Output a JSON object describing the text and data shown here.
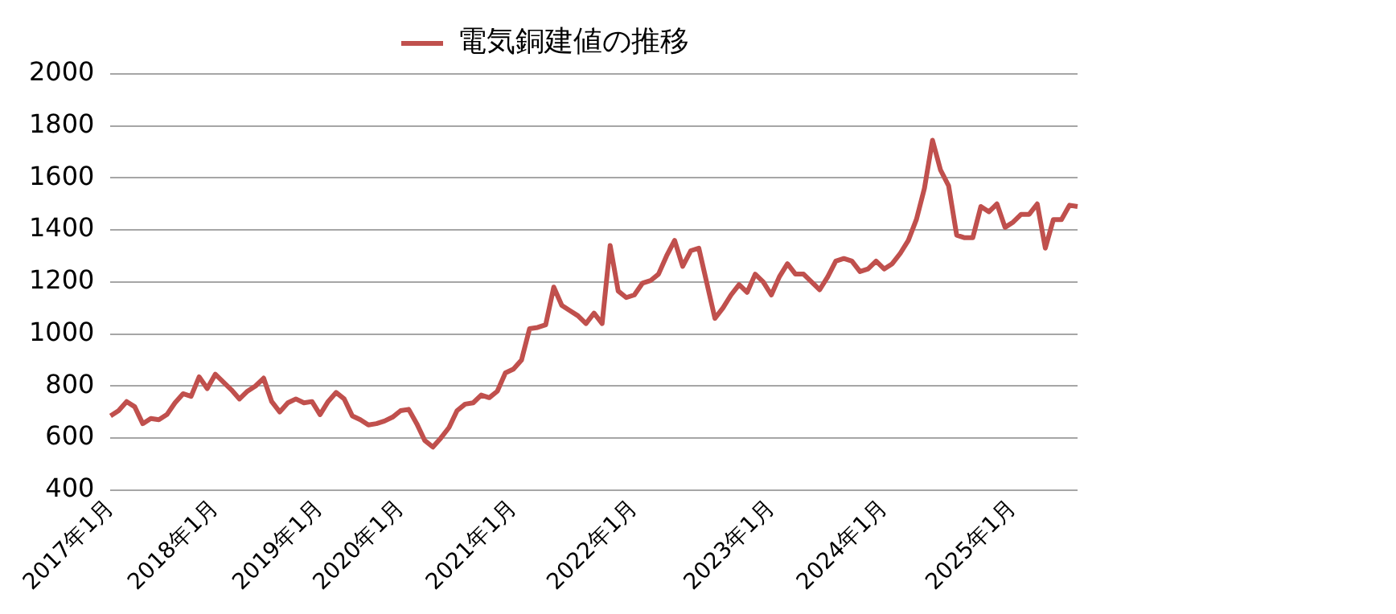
{
  "chart_data": {
    "type": "line",
    "categories": [
      "2017年1月",
      null,
      null,
      null,
      null,
      null,
      null,
      null,
      null,
      null,
      null,
      null,
      null,
      "2018年1月",
      null,
      null,
      null,
      null,
      null,
      null,
      null,
      null,
      null,
      null,
      null,
      null,
      "2019年1月",
      null,
      null,
      null,
      null,
      null,
      null,
      null,
      null,
      null,
      "2020年1月",
      null,
      null,
      null,
      null,
      null,
      null,
      null,
      null,
      null,
      null,
      null,
      null,
      null,
      "2021年1月",
      null,
      null,
      null,
      null,
      null,
      null,
      null,
      null,
      null,
      null,
      null,
      null,
      null,
      null,
      "2022年1月",
      null,
      null,
      null,
      null,
      null,
      null,
      null,
      null,
      null,
      null,
      null,
      null,
      null,
      null,
      null,
      null,
      "2023年1月",
      null,
      null,
      null,
      null,
      null,
      null,
      null,
      null,
      null,
      null,
      null,
      null,
      null,
      "2024年1月",
      null,
      null,
      null,
      null,
      null,
      null,
      null,
      null,
      null,
      null,
      null,
      null,
      null,
      null,
      null,
      "2025年1月",
      null,
      null,
      null,
      null,
      null,
      null,
      null,
      null
    ],
    "series": [
      {
        "name": "電気銅建値の推移",
        "color": "#c0504d",
        "values": [
          685,
          705,
          740,
          720,
          655,
          675,
          670,
          690,
          735,
          770,
          760,
          835,
          790,
          845,
          815,
          785,
          750,
          780,
          800,
          830,
          740,
          700,
          735,
          750,
          735,
          740,
          690,
          740,
          775,
          750,
          685,
          670,
          650,
          655,
          665,
          680,
          705,
          710,
          655,
          590,
          565,
          600,
          640,
          705,
          730,
          735,
          765,
          755,
          780,
          850,
          865,
          900,
          1020,
          1025,
          1035,
          1180,
          1110,
          1090,
          1070,
          1040,
          1080,
          1040,
          1340,
          1165,
          1140,
          1150,
          1195,
          1205,
          1230,
          1300,
          1360,
          1260,
          1320,
          1330,
          1195,
          1060,
          1100,
          1150,
          1190,
          1160,
          1230,
          1200,
          1150,
          1220,
          1270,
          1230,
          1230,
          1200,
          1170,
          1220,
          1280,
          1290,
          1280,
          1240,
          1250,
          1280,
          1250,
          1270,
          1310,
          1360,
          1440,
          1560,
          1745,
          1630,
          1570,
          1380,
          1370,
          1370,
          1490,
          1470,
          1500,
          1410,
          1430,
          1460,
          1460,
          1500,
          1330,
          1440,
          1440,
          1495,
          1490
        ]
      }
    ],
    "ylim": [
      400,
      2000
    ],
    "yticks": [
      400,
      600,
      800,
      1000,
      1200,
      1400,
      1600,
      1800,
      2000
    ],
    "grid": "y",
    "legend": "top",
    "marker": "none",
    "line_style": "solid"
  }
}
